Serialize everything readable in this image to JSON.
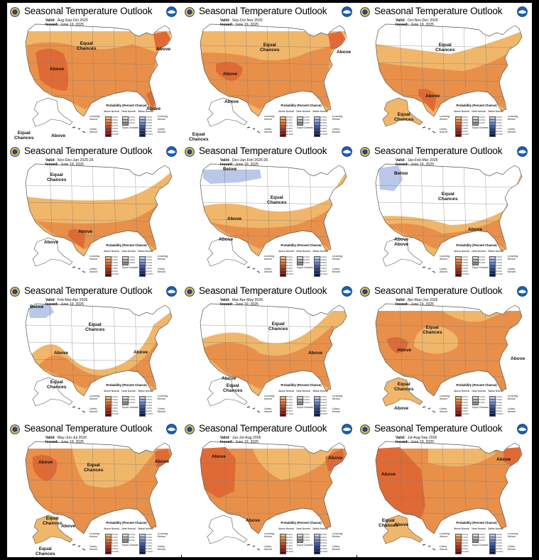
{
  "panels": [
    {
      "title": "Seasonal Temperature Outlook",
      "valid_label": "Valid:",
      "valid": "Aug-Sep-Oct 2025",
      "issued_label": "Issued:",
      "issued": "June 19, 2025",
      "labels": [
        {
          "text": "Equal Chances",
          "x": 0,
          "y": 0
        },
        {
          "text": "Above"
        },
        {
          "text": "Above"
        },
        {
          "text": "Above"
        },
        {
          "text": "Equal Chances"
        },
        {
          "text": "Above"
        }
      ],
      "pattern": 0
    },
    {
      "title": "Seasonal Temperature Outlook",
      "valid_label": "Valid:",
      "valid": "Sep-Oct-Nov 2025",
      "issued_label": "Issued:",
      "issued": "June 19, 2025",
      "labels": [
        {
          "text": "Equal Chances"
        },
        {
          "text": "Above"
        },
        {
          "text": "Above"
        },
        {
          "text": "Above"
        },
        {
          "text": "Equal Chances"
        }
      ],
      "pattern": 1
    },
    {
      "title": "Seasonal Temperature Outlook",
      "valid_label": "Valid:",
      "valid": "Oct-Nov-Dec 2025",
      "issued_label": "Issued:",
      "issued": "June 19, 2025",
      "labels": [
        {
          "text": "Equal Chances"
        },
        {
          "text": "Above"
        },
        {
          "text": "Equal Chances"
        }
      ],
      "pattern": 2
    },
    {
      "title": "Seasonal Temperature Outlook",
      "valid_label": "Valid:",
      "valid": "Nov-Dec-Jan 2025-26",
      "issued_label": "Issued:",
      "issued": "June 19, 2025",
      "labels": [
        {
          "text": "Equal Chances"
        },
        {
          "text": "Above"
        },
        {
          "text": "Above"
        }
      ],
      "pattern": 3
    },
    {
      "title": "Seasonal Temperature Outlook",
      "valid_label": "Valid:",
      "valid": "Dec-Jan-Feb 2025-26",
      "issued_label": "Issued:",
      "issued": "June 19, 2025",
      "labels": [
        {
          "text": "Below"
        },
        {
          "text": "Equal Chances"
        },
        {
          "text": "Above"
        },
        {
          "text": "Above"
        }
      ],
      "pattern": 4
    },
    {
      "title": "Seasonal Temperature Outlook",
      "valid_label": "Valid:",
      "valid": "Jan-Feb-Mar 2026",
      "issued_label": "Issued:",
      "issued": "June 19, 2025",
      "labels": [
        {
          "text": "Below"
        },
        {
          "text": "Equal Chances"
        },
        {
          "text": "Above"
        },
        {
          "text": "Above"
        },
        {
          "text": "Above"
        }
      ],
      "pattern": 5
    },
    {
      "title": "Seasonal Temperature Outlook",
      "valid_label": "Valid:",
      "valid": "Feb-Mar-Apr 2026",
      "issued_label": "Issued:",
      "issued": "June 19, 2025",
      "labels": [
        {
          "text": "Below"
        },
        {
          "text": "Equal Chances"
        },
        {
          "text": "Above"
        },
        {
          "text": "Above"
        },
        {
          "text": "Equal Chances"
        }
      ],
      "pattern": 6
    },
    {
      "title": "Seasonal Temperature Outlook",
      "valid_label": "Valid:",
      "valid": "Mar-Apr-May 2026",
      "issued_label": "Issued:",
      "issued": "June 19, 2025",
      "labels": [
        {
          "text": "Equal Chances"
        },
        {
          "text": "Above"
        },
        {
          "text": "Above"
        },
        {
          "text": "Equal Chances"
        }
      ],
      "pattern": 7
    },
    {
      "title": "Seasonal Temperature Outlook",
      "valid_label": "Valid:",
      "valid": "Apr-May-Jun 2026",
      "issued_label": "Issued:",
      "issued": "June 19, 2025",
      "labels": [
        {
          "text": "Equal Chances"
        },
        {
          "text": "Above"
        },
        {
          "text": "Above"
        },
        {
          "text": "Equal Chances"
        },
        {
          "text": "Above"
        }
      ],
      "pattern": 8
    },
    {
      "title": "Seasonal Temperature Outlook",
      "valid_label": "Valid:",
      "valid": "May-Jun-Jul 2026",
      "issued_label": "Issued:",
      "issued": "June 19, 2025",
      "labels": [
        {
          "text": "Above"
        },
        {
          "text": "Equal Chances"
        },
        {
          "text": "Above"
        },
        {
          "text": "Equal Chances"
        },
        {
          "text": "Above"
        },
        {
          "text": "Equal Chances"
        }
      ],
      "pattern": 9
    },
    {
      "title": "Seasonal Temperature Outlook",
      "valid_label": "Valid:",
      "valid": "Jun-Jul-Aug 2026",
      "issued_label": "Issued:",
      "issued": "June 19, 2025",
      "labels": [
        {
          "text": "Above"
        },
        {
          "text": "Above"
        },
        {
          "text": "Above"
        }
      ],
      "pattern": 10
    },
    {
      "title": "Seasonal Temperature Outlook",
      "valid_label": "Valid:",
      "valid": "Jul-Aug-Sep 2026",
      "issued_label": "Issued:",
      "issued": "June 19, 2025",
      "labels": [
        {
          "text": "Above"
        },
        {
          "text": "Above"
        },
        {
          "text": "Equal Chances"
        },
        {
          "text": "Above"
        }
      ],
      "pattern": 11
    }
  ],
  "legend": {
    "title": "Probability (Percent Chance)",
    "col_above": "Above Normal",
    "col_near": "Near Normal",
    "col_below": "Below Normal",
    "leaning_above": "Leaning Above",
    "likely_above": "Likely Above",
    "leaning_below": "Leaning Below",
    "likely_below": "Likely Below",
    "equal_chances": "Equal Chances",
    "pcts": [
      "33-40%",
      "40-50%",
      "50-60%",
      "60-70%",
      "70-80%",
      "80-90%",
      "90-100%"
    ],
    "near_pcts": [
      "33-40%",
      "40-50%",
      "50-60%"
    ],
    "colors_above": [
      "#f0b66a",
      "#e8904a",
      "#e06a35",
      "#cc4422",
      "#b02a14",
      "#8a1a0c",
      "#600a05"
    ],
    "colors_below": [
      "#b9c7e8",
      "#8fa6d8",
      "#6480c4",
      "#3e5aa8",
      "#24408a",
      "#152c6a",
      "#0a1a48"
    ],
    "colors_near": [
      "#d5d5d5",
      "#b0b0b0",
      "#8a8a8a"
    ]
  },
  "colors": {
    "light_orange": "#f0b66a",
    "orange": "#e8904a",
    "dark_orange": "#e06a35",
    "red": "#cc4422",
    "blue": "#b9c7e8",
    "outline": "#555555"
  }
}
